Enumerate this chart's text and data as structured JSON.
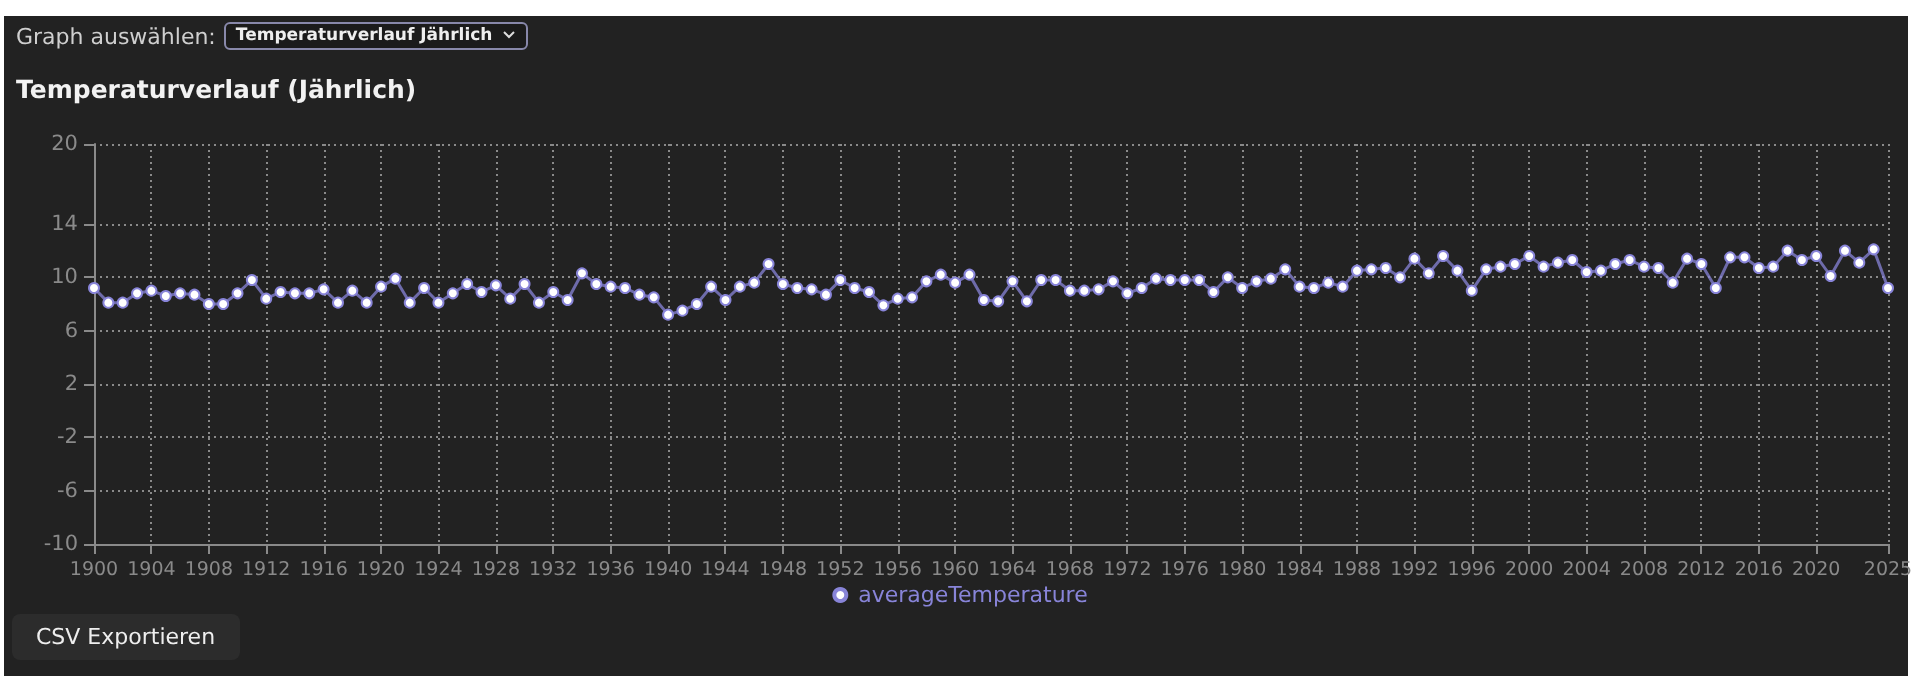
{
  "chart_data": {
    "type": "line",
    "title": "Temperaturverlauf (Jährlich)",
    "annotations": [
      "Graph auswählen:",
      "Temperaturverlauf Jährlich",
      "CSV Exportieren"
    ],
    "x": [
      1900,
      1901,
      1902,
      1903,
      1904,
      1905,
      1906,
      1907,
      1908,
      1909,
      1910,
      1911,
      1912,
      1913,
      1914,
      1915,
      1916,
      1917,
      1918,
      1919,
      1920,
      1921,
      1922,
      1923,
      1924,
      1925,
      1926,
      1927,
      1928,
      1929,
      1930,
      1931,
      1932,
      1933,
      1934,
      1935,
      1936,
      1937,
      1938,
      1939,
      1940,
      1941,
      1942,
      1943,
      1944,
      1945,
      1946,
      1947,
      1948,
      1949,
      1950,
      1951,
      1952,
      1953,
      1954,
      1955,
      1956,
      1957,
      1958,
      1959,
      1960,
      1961,
      1962,
      1963,
      1964,
      1965,
      1966,
      1967,
      1968,
      1969,
      1970,
      1971,
      1972,
      1973,
      1974,
      1975,
      1976,
      1977,
      1978,
      1979,
      1980,
      1981,
      1982,
      1983,
      1984,
      1985,
      1986,
      1987,
      1988,
      1989,
      1990,
      1991,
      1992,
      1993,
      1994,
      1995,
      1996,
      1997,
      1998,
      1999,
      2000,
      2001,
      2002,
      2003,
      2004,
      2005,
      2006,
      2007,
      2008,
      2009,
      2010,
      2011,
      2012,
      2013,
      2014,
      2015,
      2016,
      2017,
      2018,
      2019,
      2020,
      2021,
      2022,
      2023,
      2024,
      2025
    ],
    "series": [
      {
        "name": "averageTemperature",
        "color": "#8884d8",
        "values": [
          9.2,
          8.1,
          8.1,
          8.8,
          9.0,
          8.6,
          8.8,
          8.7,
          8.0,
          8.0,
          8.8,
          9.8,
          8.4,
          8.9,
          8.8,
          8.8,
          9.1,
          8.1,
          9.0,
          8.1,
          9.3,
          9.9,
          8.1,
          9.2,
          8.1,
          8.8,
          9.5,
          8.9,
          9.4,
          8.4,
          9.5,
          8.1,
          8.9,
          8.3,
          10.3,
          9.5,
          9.3,
          9.2,
          8.7,
          8.5,
          7.2,
          7.5,
          8.0,
          9.3,
          8.3,
          9.3,
          9.6,
          11.0,
          9.5,
          9.2,
          9.1,
          8.7,
          9.8,
          9.2,
          8.9,
          7.9,
          8.4,
          8.5,
          9.7,
          10.2,
          9.6,
          10.2,
          8.3,
          8.2,
          9.7,
          8.2,
          9.8,
          9.8,
          9.0,
          9.0,
          9.1,
          9.7,
          8.8,
          9.2,
          9.9,
          9.8,
          9.8,
          9.8,
          8.9,
          10.0,
          9.2,
          9.7,
          9.9,
          10.6,
          9.3,
          9.2,
          9.6,
          9.3,
          10.5,
          10.6,
          10.7,
          10.0,
          11.4,
          10.3,
          11.6,
          10.5,
          9.0,
          10.6,
          10.8,
          11.0,
          11.6,
          10.8,
          11.1,
          11.3,
          10.4,
          10.5,
          11.0,
          11.3,
          10.8,
          10.7,
          9.6,
          11.4,
          11.0,
          9.2,
          11.5,
          11.5,
          10.7,
          10.8,
          12.0,
          11.3,
          11.6,
          10.1,
          12.0,
          11.1,
          12.1,
          9.2
        ]
      }
    ],
    "xlim": [
      1900,
      2025
    ],
    "xticks": [
      1900,
      1904,
      1908,
      1912,
      1916,
      1920,
      1924,
      1928,
      1932,
      1936,
      1940,
      1944,
      1948,
      1952,
      1956,
      1960,
      1964,
      1968,
      1972,
      1976,
      1980,
      1984,
      1988,
      1992,
      1996,
      2000,
      2004,
      2008,
      2012,
      2016,
      2020,
      2025
    ],
    "ylim": [
      -10,
      20
    ],
    "yticks": [
      -10,
      -6,
      -2,
      2,
      6,
      10,
      14,
      20
    ],
    "grid": true,
    "legend": "bottom",
    "marker": "circle",
    "line_style": "solid"
  }
}
